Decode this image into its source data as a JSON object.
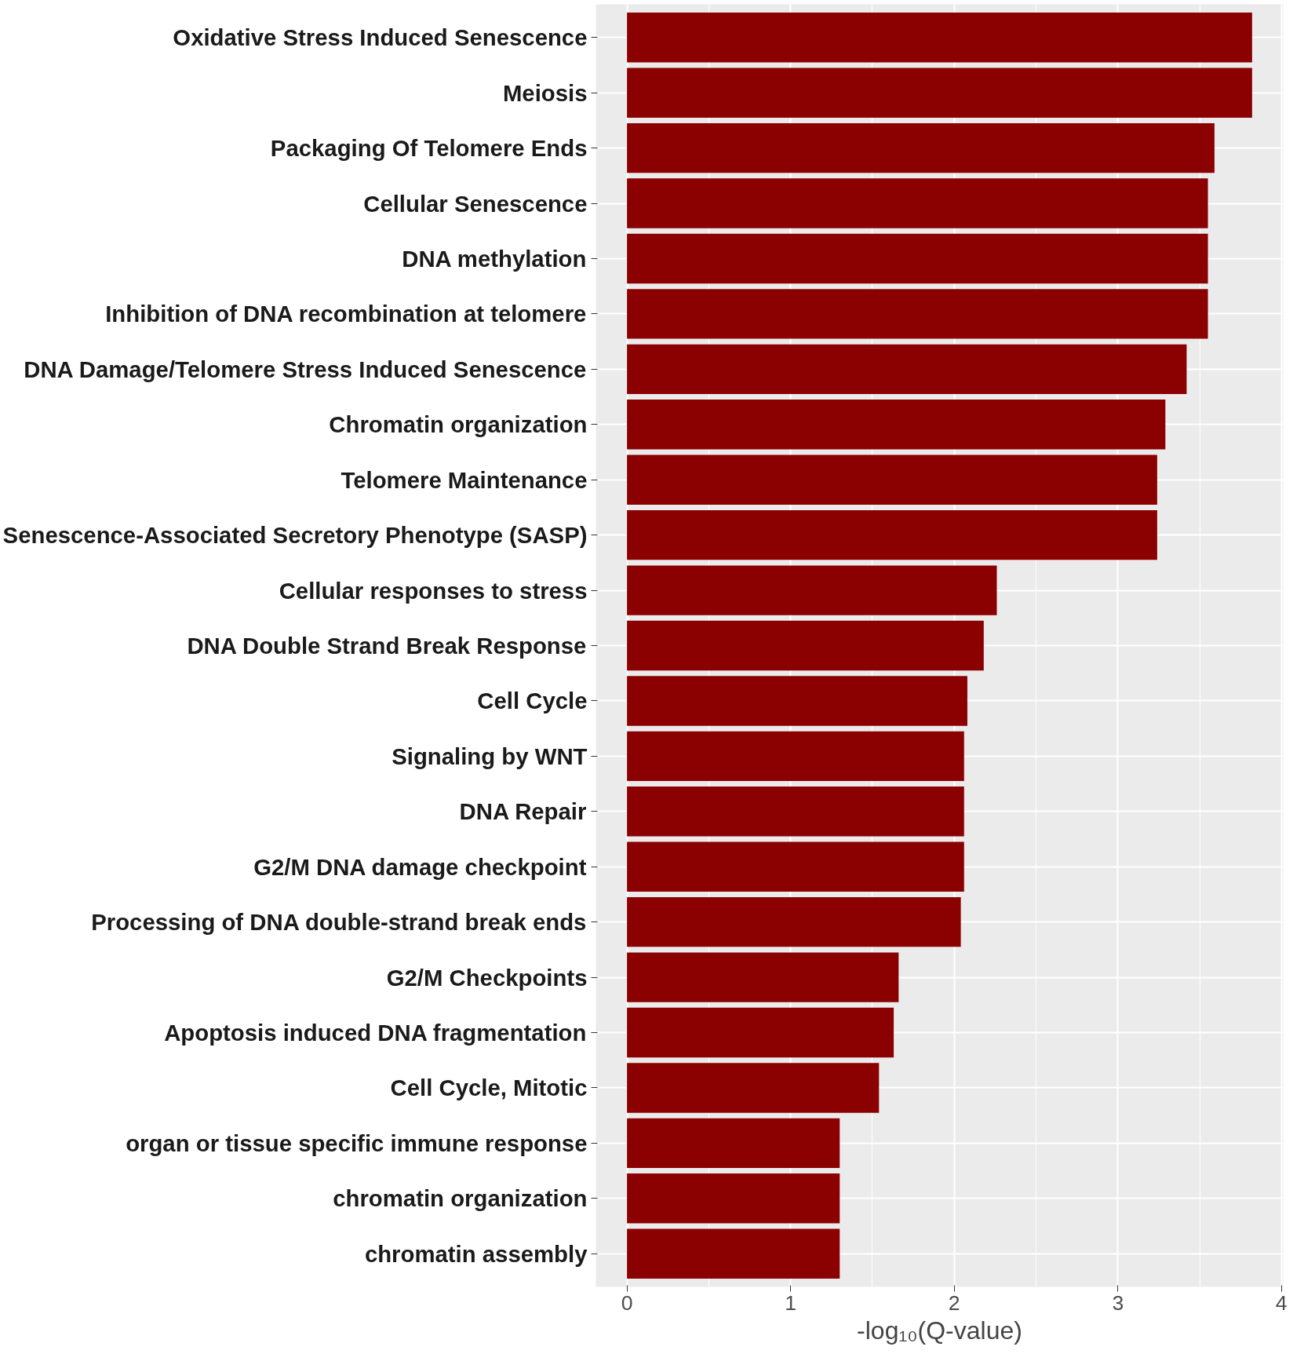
{
  "chart_data": {
    "type": "bar",
    "orientation": "horizontal",
    "xlabel": "-log₁₀(Q-value)",
    "categories": [
      "Oxidative Stress Induced Senescence",
      "Meiosis",
      "Packaging Of Telomere Ends",
      "Cellular Senescence",
      "DNA methylation",
      "Inhibition of DNA recombination at telomere",
      "DNA Damage/Telomere Stress Induced Senescence",
      "Chromatin organization",
      "Telomere Maintenance",
      "Senescence-Associated Secretory Phenotype (SASP)",
      "Cellular responses to stress",
      "DNA Double Strand Break Response",
      "Cell Cycle",
      "Signaling by WNT",
      "DNA Repair",
      "G2/M DNA damage checkpoint",
      "Processing of DNA double-strand break ends",
      "G2/M Checkpoints",
      "Apoptosis induced DNA fragmentation",
      "Cell Cycle, Mitotic",
      "organ or tissue specific immune response",
      "chromatin organization",
      "chromatin assembly"
    ],
    "values": [
      3.82,
      3.82,
      3.59,
      3.55,
      3.55,
      3.55,
      3.42,
      3.29,
      3.24,
      3.24,
      2.26,
      2.18,
      2.08,
      2.06,
      2.06,
      2.06,
      2.04,
      1.66,
      1.63,
      1.54,
      1.3,
      1.3,
      1.3
    ],
    "color": "#8b0000",
    "xlim": [
      -0.19,
      4.01
    ],
    "xticks": [
      0,
      1,
      2,
      3,
      4
    ],
    "grid": true
  }
}
